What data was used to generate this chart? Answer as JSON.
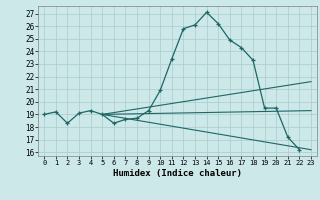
{
  "xlabel": "Humidex (Indice chaleur)",
  "bg_color": "#cce8e8",
  "grid_color": "#aacccc",
  "line_color": "#1e6666",
  "xlim": [
    -0.5,
    23.5
  ],
  "ylim": [
    15.7,
    27.6
  ],
  "xticks": [
    0,
    1,
    2,
    3,
    4,
    5,
    6,
    7,
    8,
    9,
    10,
    11,
    12,
    13,
    14,
    15,
    16,
    17,
    18,
    19,
    20,
    21,
    22,
    23
  ],
  "yticks": [
    16,
    17,
    18,
    19,
    20,
    21,
    22,
    23,
    24,
    25,
    26,
    27
  ],
  "main_x": [
    0,
    1,
    2,
    3,
    4,
    5,
    6,
    7,
    8,
    9,
    10,
    11,
    12,
    13,
    14,
    15,
    16,
    17,
    18,
    19,
    20,
    21,
    22,
    23
  ],
  "main_y": [
    19,
    19.2,
    18.3,
    19.1,
    19.3,
    19.0,
    18.3,
    18.6,
    18.7,
    19.3,
    20.9,
    23.4,
    25.8,
    26.1,
    27.1,
    26.2,
    24.9,
    24.3,
    23.3,
    19.5,
    19.5,
    17.2,
    16.2,
    null
  ],
  "line2_x": [
    5,
    23
  ],
  "line2_y": [
    19.0,
    21.6
  ],
  "line3_x": [
    5,
    23
  ],
  "line3_y": [
    19.0,
    19.3
  ],
  "line4_x": [
    5,
    23
  ],
  "line4_y": [
    19.0,
    16.2
  ]
}
